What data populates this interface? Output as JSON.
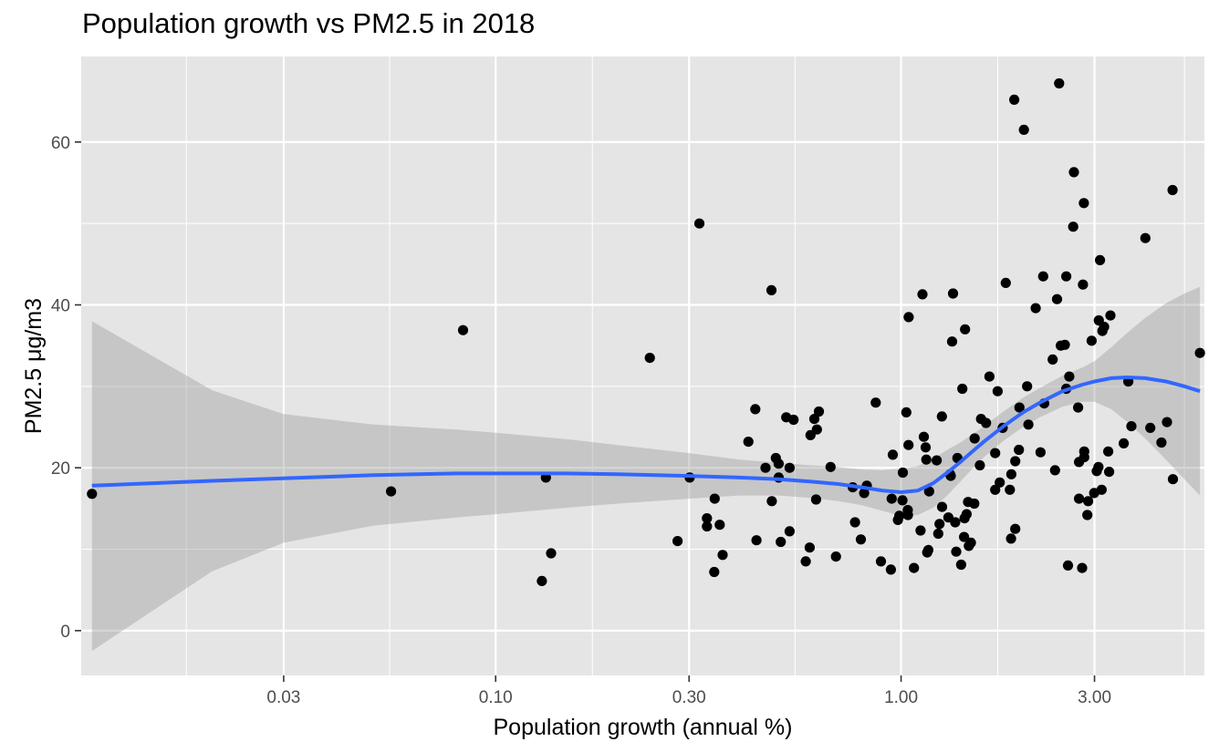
{
  "chart_data": {
    "type": "scatter",
    "title": "Population growth vs PM2.5 in 2018",
    "xlabel": "Population growth (annual %)",
    "ylabel": "PM2.5 μg/m3",
    "x_scale": "log10",
    "xlim": [
      0.0095,
      5.6
    ],
    "ylim": [
      -5.5,
      70.5
    ],
    "x_ticks": [
      0.03,
      0.1,
      0.3,
      1.0,
      3.0
    ],
    "x_tick_labels": [
      "0.03",
      "0.10",
      "0.30",
      "1.00",
      "3.00"
    ],
    "x_minor_ticks": [
      0.01726,
      0.05477,
      0.1732,
      0.5477,
      1.732,
      5.0
    ],
    "y_ticks": [
      0,
      20,
      40,
      60
    ],
    "y_tick_labels": [
      "0",
      "20",
      "40",
      "60"
    ],
    "y_minor_ticks": [
      10,
      30,
      50
    ],
    "grid": true,
    "legend": "none",
    "colors": {
      "panel": "#e5e5e5",
      "grid": "#ffffff",
      "points": "#000000",
      "smooth_line": "#3366ff",
      "ribbon": "#999999"
    },
    "series": [
      {
        "points": [
          [
            0.0101,
            16.8
          ],
          [
            0.0552,
            17.1
          ],
          [
            0.0831,
            36.9
          ],
          [
            0.13,
            6.1
          ],
          [
            0.133,
            18.8
          ],
          [
            0.137,
            9.5
          ],
          [
            0.24,
            33.5
          ],
          [
            0.281,
            11.0
          ],
          [
            0.301,
            18.8
          ],
          [
            0.318,
            50.0
          ],
          [
            0.332,
            13.8
          ],
          [
            0.332,
            12.8
          ],
          [
            0.346,
            7.2
          ],
          [
            0.347,
            16.2
          ],
          [
            0.357,
            13.0
          ],
          [
            0.363,
            9.3
          ],
          [
            0.42,
            23.2
          ],
          [
            0.437,
            27.2
          ],
          [
            0.44,
            11.1
          ],
          [
            0.463,
            20.0
          ],
          [
            0.48,
            15.9
          ],
          [
            0.479,
            41.8
          ],
          [
            0.491,
            21.2
          ],
          [
            0.499,
            20.5
          ],
          [
            0.499,
            18.8
          ],
          [
            0.505,
            10.9
          ],
          [
            0.521,
            26.2
          ],
          [
            0.531,
            12.2
          ],
          [
            0.531,
            20.0
          ],
          [
            0.543,
            25.9
          ],
          [
            0.582,
            8.5
          ],
          [
            0.595,
            10.2
          ],
          [
            0.598,
            24.0
          ],
          [
            0.611,
            26.0
          ],
          [
            0.617,
            16.1
          ],
          [
            0.62,
            24.7
          ],
          [
            0.627,
            26.9
          ],
          [
            0.67,
            20.1
          ],
          [
            0.691,
            9.1
          ],
          [
            0.76,
            17.6
          ],
          [
            0.77,
            13.3
          ],
          [
            0.796,
            11.2
          ],
          [
            0.811,
            16.9
          ],
          [
            0.823,
            17.8
          ],
          [
            0.866,
            28.0
          ],
          [
            0.892,
            8.5
          ],
          [
            0.944,
            7.5
          ],
          [
            0.954,
            21.6
          ],
          [
            0.948,
            16.2
          ],
          [
            0.982,
            13.6
          ],
          [
            0.99,
            14.1
          ],
          [
            1.01,
            19.4
          ],
          [
            1.008,
            16.0
          ],
          [
            1.03,
            26.8
          ],
          [
            1.039,
            14.8
          ],
          [
            1.044,
            38.5
          ],
          [
            1.043,
            22.8
          ],
          [
            1.04,
            14.2
          ],
          [
            1.076,
            7.7
          ],
          [
            1.117,
            12.3
          ],
          [
            1.138,
            23.8
          ],
          [
            1.129,
            41.3
          ],
          [
            1.16,
            9.6
          ],
          [
            1.154,
            21.0
          ],
          [
            1.167,
            9.9
          ],
          [
            1.173,
            17.1
          ],
          [
            1.15,
            22.5
          ],
          [
            1.224,
            20.9
          ],
          [
            1.244,
            13.1
          ],
          [
            1.235,
            11.9
          ],
          [
            1.261,
            26.3
          ],
          [
            1.262,
            15.2
          ],
          [
            1.308,
            13.9
          ],
          [
            1.321,
            19.2
          ],
          [
            1.326,
            19.0
          ],
          [
            1.343,
            41.4
          ],
          [
            1.336,
            35.5
          ],
          [
            1.36,
            13.3
          ],
          [
            1.368,
            9.7
          ],
          [
            1.377,
            21.2
          ],
          [
            1.407,
            8.1
          ],
          [
            1.416,
            29.7
          ],
          [
            1.43,
            11.5
          ],
          [
            1.438,
            37.0
          ],
          [
            1.434,
            13.8
          ],
          [
            1.451,
            14.3
          ],
          [
            1.463,
            15.8
          ],
          [
            1.469,
            10.4
          ],
          [
            1.487,
            10.8
          ],
          [
            1.516,
            15.6
          ],
          [
            1.519,
            23.6
          ],
          [
            1.575,
            26.0
          ],
          [
            1.564,
            20.3
          ],
          [
            1.62,
            25.5
          ],
          [
            1.652,
            31.2
          ],
          [
            1.707,
            17.3
          ],
          [
            1.707,
            21.8
          ],
          [
            1.731,
            29.4
          ],
          [
            1.751,
            18.2
          ],
          [
            1.781,
            24.9
          ],
          [
            1.812,
            42.7
          ],
          [
            1.855,
            17.3
          ],
          [
            1.868,
            11.3
          ],
          [
            1.871,
            19.2
          ],
          [
            1.913,
            12.5
          ],
          [
            1.913,
            20.8
          ],
          [
            1.902,
            65.2
          ],
          [
            1.953,
            22.2
          ],
          [
            1.959,
            27.4
          ],
          [
            2.009,
            61.5
          ],
          [
            2.061,
            25.3
          ],
          [
            2.046,
            30.0
          ],
          [
            2.148,
            39.6
          ],
          [
            2.241,
            43.5
          ],
          [
            2.208,
            21.9
          ],
          [
            2.254,
            27.9
          ],
          [
            2.366,
            33.3
          ],
          [
            2.397,
            19.7
          ],
          [
            2.425,
            40.7
          ],
          [
            2.477,
            35.0
          ],
          [
            2.454,
            67.2
          ],
          [
            2.555,
            29.7
          ],
          [
            2.555,
            43.5
          ],
          [
            2.536,
            35.1
          ],
          [
            2.599,
            31.2
          ],
          [
            2.581,
            8.0
          ],
          [
            2.669,
            56.3
          ],
          [
            2.658,
            49.6
          ],
          [
            2.733,
            27.4
          ],
          [
            2.747,
            16.2
          ],
          [
            2.747,
            20.7
          ],
          [
            2.796,
            7.7
          ],
          [
            2.81,
            42.5
          ],
          [
            2.824,
            52.5
          ],
          [
            2.83,
            22.0
          ],
          [
            2.83,
            21.3
          ],
          [
            2.881,
            14.2
          ],
          [
            2.894,
            15.9
          ],
          [
            2.951,
            35.6
          ],
          [
            2.994,
            16.9
          ],
          [
            3.039,
            19.6
          ],
          [
            3.068,
            20.1
          ],
          [
            3.074,
            38.1
          ],
          [
            3.095,
            45.5
          ],
          [
            3.124,
            17.3
          ],
          [
            3.138,
            36.8
          ],
          [
            3.168,
            37.3
          ],
          [
            3.244,
            22.0
          ],
          [
            3.26,
            19.5
          ],
          [
            3.284,
            38.7
          ],
          [
            3.542,
            23.0
          ],
          [
            3.634,
            30.6
          ],
          [
            3.7,
            25.1
          ],
          [
            4.005,
            48.2
          ],
          [
            4.119,
            24.9
          ],
          [
            4.387,
            23.1
          ],
          [
            4.529,
            25.6
          ],
          [
            4.674,
            54.1
          ],
          [
            4.684,
            18.6
          ],
          [
            5.461,
            34.1
          ]
        ]
      }
    ],
    "smooth": {
      "x": [
        0.0101,
        0.02,
        0.03,
        0.05,
        0.08,
        0.1,
        0.15,
        0.2,
        0.3,
        0.4,
        0.5,
        0.6,
        0.7,
        0.8,
        0.9,
        1.0,
        1.1,
        1.2,
        1.3,
        1.4,
        1.5,
        1.6,
        1.8,
        2.0,
        2.2,
        2.5,
        2.8,
        3.0,
        3.3,
        3.6,
        4.0,
        4.5,
        5.0,
        5.461
      ],
      "y": [
        17.8,
        18.4,
        18.7,
        19.1,
        19.3,
        19.3,
        19.3,
        19.2,
        19.0,
        18.8,
        18.6,
        18.3,
        18.0,
        17.6,
        17.2,
        17.0,
        17.2,
        18.1,
        19.4,
        20.7,
        22.0,
        23.2,
        25.2,
        26.8,
        28.0,
        29.4,
        30.2,
        30.6,
        31.0,
        31.1,
        31.0,
        30.6,
        30.0,
        29.4
      ],
      "ymin": [
        -2.5,
        7.3,
        10.8,
        12.9,
        13.9,
        14.3,
        15.1,
        15.6,
        16.2,
        16.6,
        16.6,
        16.3,
        15.9,
        15.4,
        14.7,
        14.1,
        14.2,
        15.1,
        16.6,
        18.3,
        19.9,
        21.3,
        23.4,
        25.0,
        26.2,
        27.5,
        28.1,
        28.1,
        27.2,
        25.7,
        23.6,
        21.0,
        18.6,
        16.6
      ],
      "ymax": [
        38.0,
        29.5,
        26.6,
        25.3,
        24.7,
        24.3,
        23.5,
        22.8,
        21.8,
        21.0,
        20.6,
        20.3,
        20.1,
        19.8,
        19.7,
        19.9,
        20.2,
        21.1,
        22.2,
        23.1,
        24.1,
        25.1,
        27.0,
        28.6,
        29.8,
        31.3,
        32.3,
        33.1,
        34.8,
        36.5,
        38.4,
        40.2,
        41.4,
        42.2
      ]
    }
  }
}
